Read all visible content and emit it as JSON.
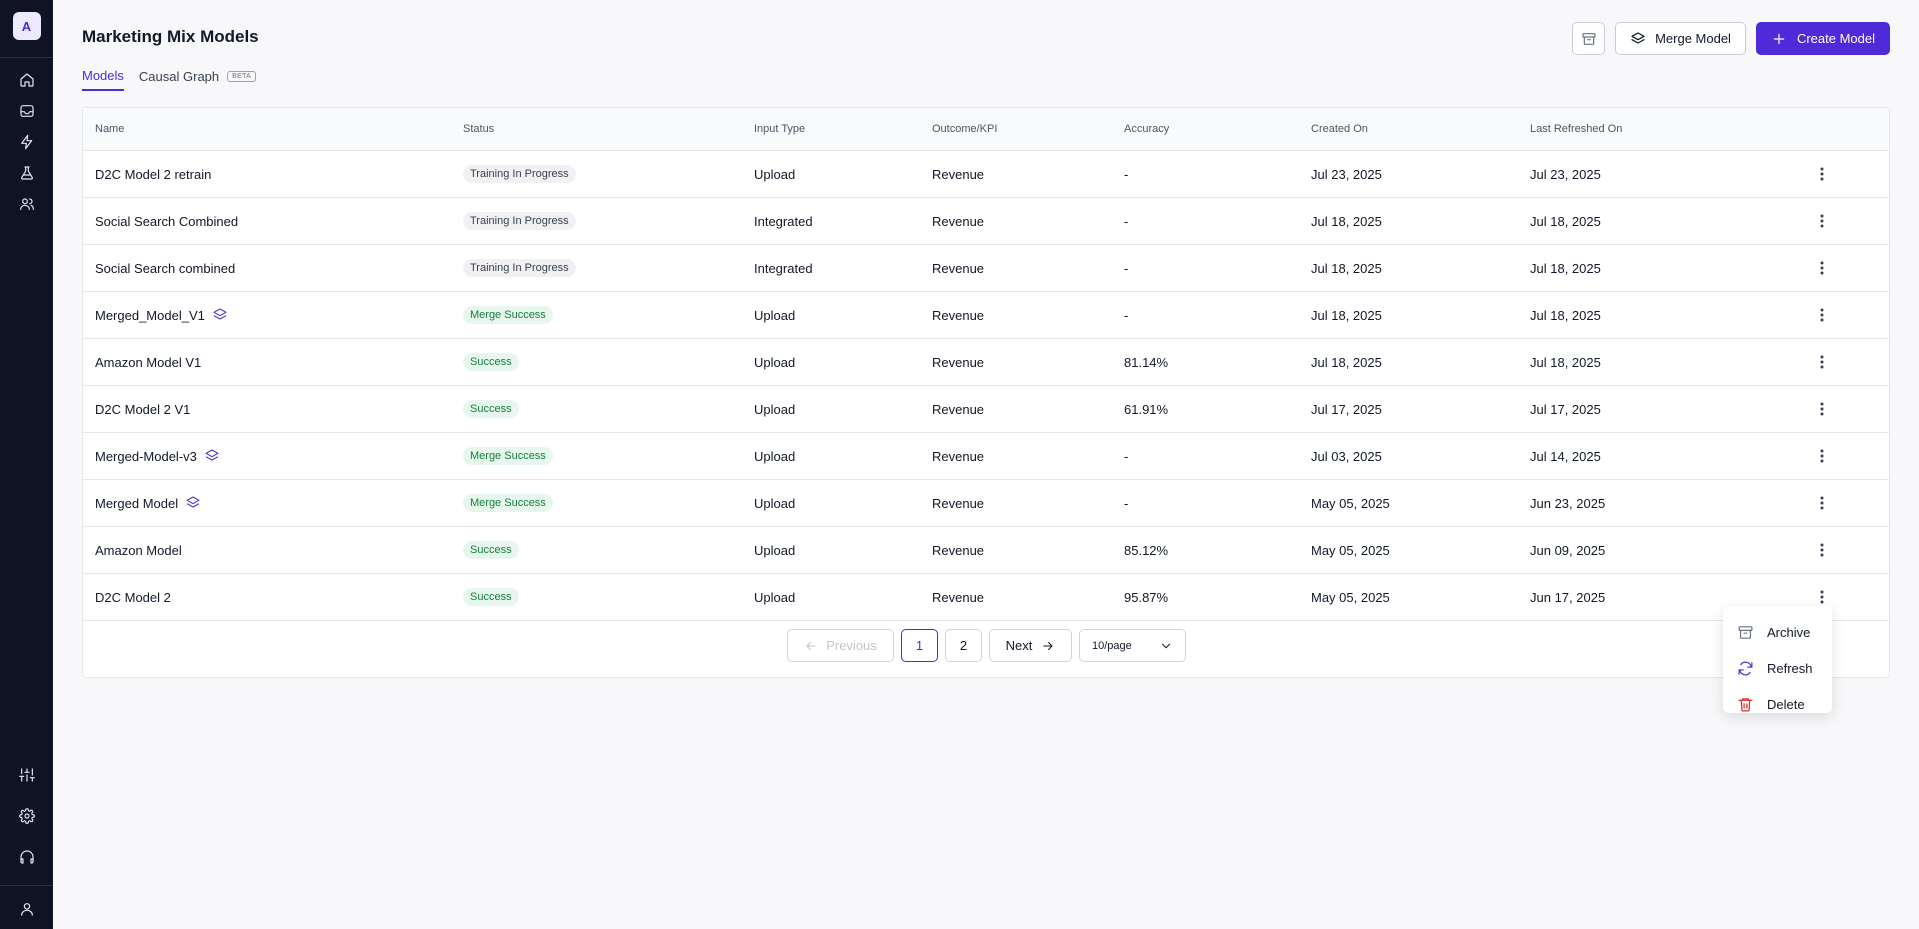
{
  "app": {
    "logo_letter": "A"
  },
  "sidebar": {
    "top_icons": [
      "home-icon",
      "inbox-icon",
      "zap-icon",
      "flask-icon",
      "users-icon"
    ],
    "bottom_icons": [
      "sliders-icon",
      "gear-icon",
      "headset-icon",
      "user-icon"
    ]
  },
  "header": {
    "title": "Marketing Mix Models",
    "archive_icon": "archive-icon",
    "merge_label": "Merge Model",
    "create_label": "Create Model"
  },
  "tabs": [
    {
      "label": "Models",
      "active": true
    },
    {
      "label": "Causal Graph",
      "badge": "BETA",
      "active": false
    }
  ],
  "table": {
    "columns": [
      "Name",
      "Status",
      "Input Type",
      "Outcome/KPI",
      "Accuracy",
      "Created On",
      "Last Refreshed On"
    ],
    "rows": [
      {
        "name": "D2C Model 2 retrain",
        "merged": false,
        "status": "Training In Progress",
        "status_kind": "training",
        "input": "Upload",
        "kpi": "Revenue",
        "accuracy": "-",
        "created": "Jul 23, 2025",
        "refreshed": "Jul 23, 2025"
      },
      {
        "name": "Social Search Combined",
        "merged": false,
        "status": "Training In Progress",
        "status_kind": "training",
        "input": "Integrated",
        "kpi": "Revenue",
        "accuracy": "-",
        "created": "Jul 18, 2025",
        "refreshed": "Jul 18, 2025"
      },
      {
        "name": "Social Search combined",
        "merged": false,
        "status": "Training In Progress",
        "status_kind": "training",
        "input": "Integrated",
        "kpi": "Revenue",
        "accuracy": "-",
        "created": "Jul 18, 2025",
        "refreshed": "Jul 18, 2025"
      },
      {
        "name": "Merged_Model_V1",
        "merged": true,
        "status": "Merge Success",
        "status_kind": "success",
        "input": "Upload",
        "kpi": "Revenue",
        "accuracy": "-",
        "created": "Jul 18, 2025",
        "refreshed": "Jul 18, 2025"
      },
      {
        "name": "Amazon Model V1",
        "merged": false,
        "status": "Success",
        "status_kind": "success",
        "input": "Upload",
        "kpi": "Revenue",
        "accuracy": "81.14%",
        "created": "Jul 18, 2025",
        "refreshed": "Jul 18, 2025"
      },
      {
        "name": "D2C Model 2 V1",
        "merged": false,
        "status": "Success",
        "status_kind": "success",
        "input": "Upload",
        "kpi": "Revenue",
        "accuracy": "61.91%",
        "created": "Jul 17, 2025",
        "refreshed": "Jul 17, 2025"
      },
      {
        "name": "Merged-Model-v3",
        "merged": true,
        "status": "Merge Success",
        "status_kind": "success",
        "input": "Upload",
        "kpi": "Revenue",
        "accuracy": "-",
        "created": "Jul 03, 2025",
        "refreshed": "Jul 14, 2025"
      },
      {
        "name": "Merged Model",
        "merged": true,
        "status": "Merge Success",
        "status_kind": "success",
        "input": "Upload",
        "kpi": "Revenue",
        "accuracy": "-",
        "created": "May 05, 2025",
        "refreshed": "Jun 23, 2025"
      },
      {
        "name": "Amazon Model",
        "merged": false,
        "status": "Success",
        "status_kind": "success",
        "input": "Upload",
        "kpi": "Revenue",
        "accuracy": "85.12%",
        "created": "May 05, 2025",
        "refreshed": "Jun 09, 2025"
      },
      {
        "name": "D2C Model 2",
        "merged": false,
        "status": "Success",
        "status_kind": "success",
        "input": "Upload",
        "kpi": "Revenue",
        "accuracy": "95.87%",
        "created": "May 05, 2025",
        "refreshed": "Jun 17, 2025"
      }
    ]
  },
  "pagination": {
    "previous": "Previous",
    "pages": [
      "1",
      "2"
    ],
    "current": "1",
    "next": "Next",
    "page_size": "10/page"
  },
  "row_menu": {
    "items": [
      {
        "label": "Archive",
        "icon": "archive-icon"
      },
      {
        "label": "Refresh",
        "icon": "refresh-icon"
      },
      {
        "label": "Delete",
        "icon": "trash-icon"
      }
    ]
  },
  "colors": {
    "accent": "#4f2ad8",
    "sidebar_bg": "#0f1324",
    "success_text": "#15803d",
    "delete": "#dc2626"
  }
}
